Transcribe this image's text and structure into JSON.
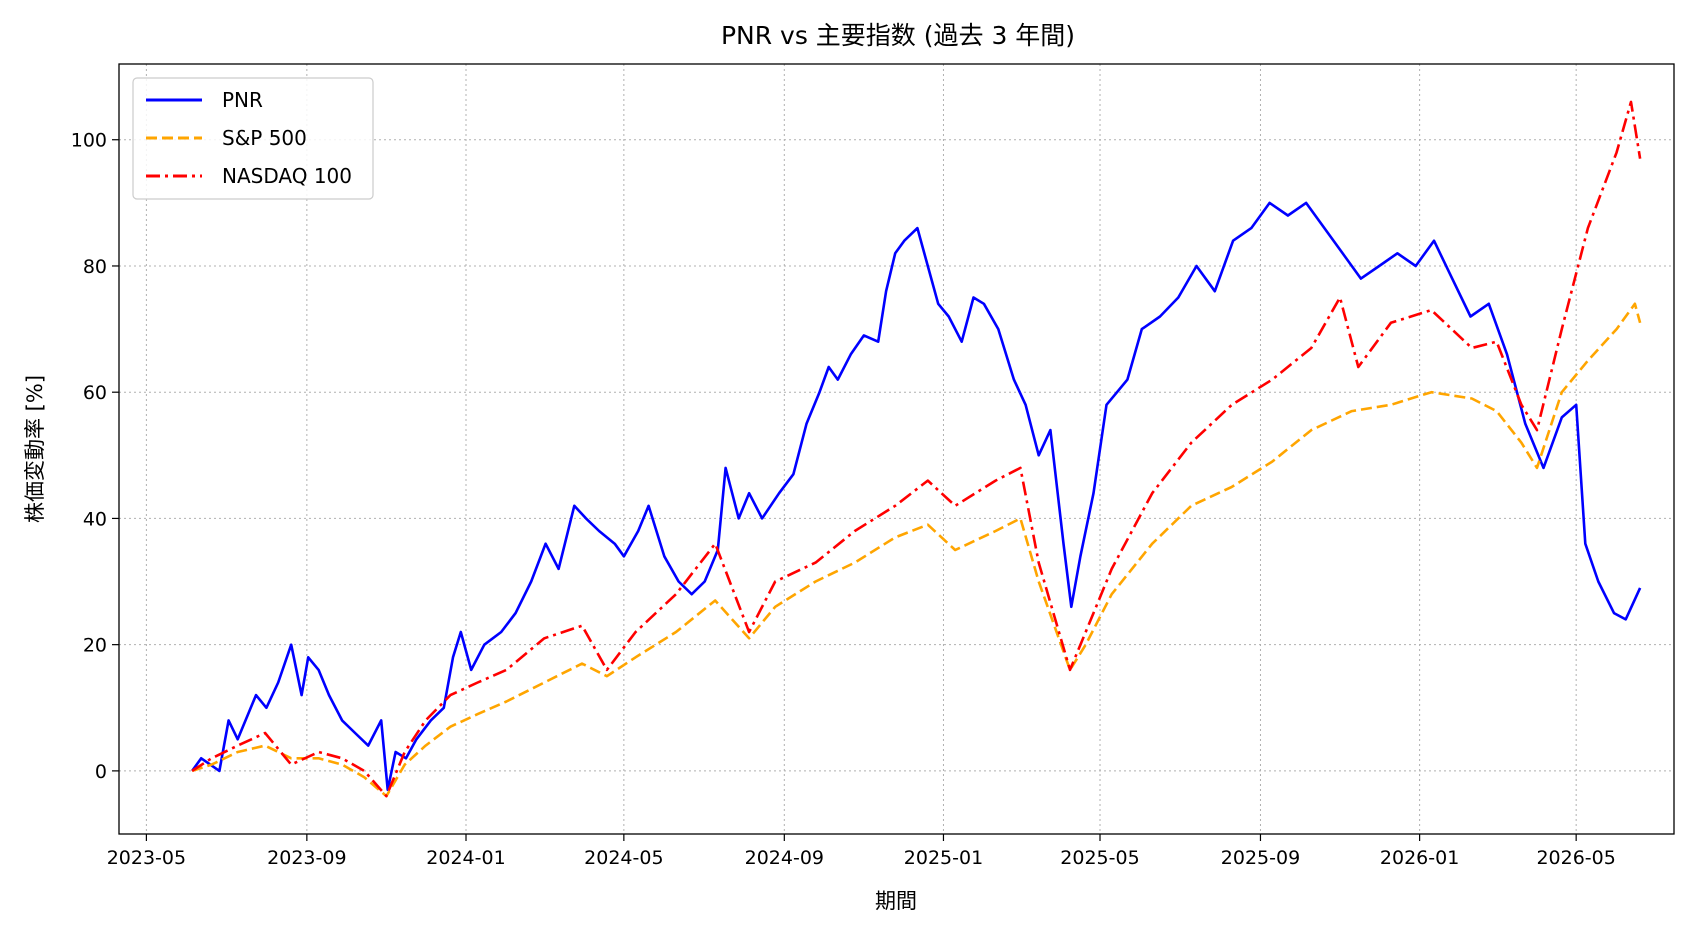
{
  "chart_data": {
    "type": "line",
    "title": "PNR vs 主要指数 (過去 3 年間)",
    "xlabel": "期間",
    "ylabel": "株価変動率 [%]",
    "x_ticks": [
      "2023-05",
      "2023-09",
      "2024-01",
      "2024-05",
      "2024-09",
      "2025-01",
      "2025-05",
      "2025-09",
      "2026-01",
      "2026-05"
    ],
    "y_ticks": [
      0,
      20,
      40,
      60,
      80,
      100
    ],
    "xlim": [
      "2023-04-10",
      "2026-07-15"
    ],
    "ylim": [
      -10,
      112
    ],
    "grid": true,
    "legend_position": "top-left",
    "series": [
      {
        "name": "PNR",
        "color": "#0000ff",
        "style": "solid",
        "points": [
          [
            "2023-06-05",
            0
          ],
          [
            "2023-06-12",
            2
          ],
          [
            "2023-06-26",
            0
          ],
          [
            "2023-07-03",
            8
          ],
          [
            "2023-07-10",
            5
          ],
          [
            "2023-07-24",
            12
          ],
          [
            "2023-08-01",
            10
          ],
          [
            "2023-08-10",
            14
          ],
          [
            "2023-08-20",
            20
          ],
          [
            "2023-08-28",
            12
          ],
          [
            "2023-09-02",
            18
          ],
          [
            "2023-09-10",
            16
          ],
          [
            "2023-09-18",
            12
          ],
          [
            "2023-09-28",
            8
          ],
          [
            "2023-10-08",
            6
          ],
          [
            "2023-10-18",
            4
          ],
          [
            "2023-10-28",
            8
          ],
          [
            "2023-11-02",
            -3
          ],
          [
            "2023-11-08",
            3
          ],
          [
            "2023-11-16",
            2
          ],
          [
            "2023-11-24",
            5
          ],
          [
            "2023-12-05",
            8
          ],
          [
            "2023-12-15",
            10
          ],
          [
            "2023-12-22",
            18
          ],
          [
            "2023-12-28",
            22
          ],
          [
            "2024-01-05",
            16
          ],
          [
            "2024-01-15",
            20
          ],
          [
            "2024-01-28",
            22
          ],
          [
            "2024-02-08",
            25
          ],
          [
            "2024-02-20",
            30
          ],
          [
            "2024-03-02",
            36
          ],
          [
            "2024-03-12",
            32
          ],
          [
            "2024-03-24",
            42
          ],
          [
            "2024-04-02",
            40
          ],
          [
            "2024-04-12",
            38
          ],
          [
            "2024-04-24",
            36
          ],
          [
            "2024-05-01",
            34
          ],
          [
            "2024-05-12",
            38
          ],
          [
            "2024-05-20",
            42
          ],
          [
            "2024-06-01",
            34
          ],
          [
            "2024-06-12",
            30
          ],
          [
            "2024-06-22",
            28
          ],
          [
            "2024-07-02",
            30
          ],
          [
            "2024-07-12",
            35
          ],
          [
            "2024-07-18",
            48
          ],
          [
            "2024-07-28",
            40
          ],
          [
            "2024-08-05",
            44
          ],
          [
            "2024-08-15",
            40
          ],
          [
            "2024-08-28",
            44
          ],
          [
            "2024-09-08",
            47
          ],
          [
            "2024-09-18",
            55
          ],
          [
            "2024-09-28",
            60
          ],
          [
            "2024-10-05",
            64
          ],
          [
            "2024-10-12",
            62
          ],
          [
            "2024-10-22",
            66
          ],
          [
            "2024-11-01",
            69
          ],
          [
            "2024-11-12",
            68
          ],
          [
            "2024-11-18",
            76
          ],
          [
            "2024-11-25",
            82
          ],
          [
            "2024-12-02",
            84
          ],
          [
            "2024-12-12",
            86
          ],
          [
            "2024-12-20",
            80
          ],
          [
            "2024-12-28",
            74
          ],
          [
            "2025-01-05",
            72
          ],
          [
            "2025-01-15",
            68
          ],
          [
            "2025-01-24",
            75
          ],
          [
            "2025-02-01",
            74
          ],
          [
            "2025-02-12",
            70
          ],
          [
            "2025-02-24",
            62
          ],
          [
            "2025-03-05",
            58
          ],
          [
            "2025-03-15",
            50
          ],
          [
            "2025-03-24",
            54
          ],
          [
            "2025-04-03",
            36
          ],
          [
            "2025-04-09",
            26
          ],
          [
            "2025-04-16",
            34
          ],
          [
            "2025-04-26",
            44
          ],
          [
            "2025-05-06",
            58
          ],
          [
            "2025-05-14",
            60
          ],
          [
            "2025-05-22",
            62
          ],
          [
            "2025-06-02",
            70
          ],
          [
            "2025-06-16",
            72
          ],
          [
            "2025-06-30",
            75
          ],
          [
            "2025-07-14",
            80
          ],
          [
            "2025-07-28",
            76
          ],
          [
            "2025-08-11",
            84
          ],
          [
            "2025-08-25",
            86
          ],
          [
            "2025-09-08",
            90
          ],
          [
            "2025-09-22",
            88
          ],
          [
            "2025-10-06",
            90
          ],
          [
            "2025-10-20",
            86
          ],
          [
            "2025-11-03",
            82
          ],
          [
            "2025-11-17",
            78
          ],
          [
            "2025-12-01",
            80
          ],
          [
            "2025-12-15",
            82
          ],
          [
            "2025-12-29",
            80
          ],
          [
            "2026-01-12",
            84
          ],
          [
            "2026-01-26",
            78
          ],
          [
            "2026-02-09",
            72
          ],
          [
            "2026-02-23",
            74
          ],
          [
            "2026-03-09",
            66
          ],
          [
            "2026-03-23",
            55
          ],
          [
            "2026-04-06",
            48
          ],
          [
            "2026-04-20",
            56
          ],
          [
            "2026-05-01",
            58
          ],
          [
            "2026-05-08",
            36
          ],
          [
            "2026-05-18",
            30
          ],
          [
            "2026-05-30",
            25
          ],
          [
            "2026-06-08",
            24
          ],
          [
            "2026-06-19",
            29
          ]
        ]
      },
      {
        "name": "S&P 500",
        "color": "#ffa500",
        "style": "dashed",
        "points": [
          [
            "2023-06-05",
            0
          ],
          [
            "2023-06-20",
            1
          ],
          [
            "2023-07-10",
            3
          ],
          [
            "2023-07-31",
            4
          ],
          [
            "2023-08-20",
            2
          ],
          [
            "2023-09-10",
            2
          ],
          [
            "2023-09-28",
            1
          ],
          [
            "2023-10-15",
            -1
          ],
          [
            "2023-11-01",
            -4
          ],
          [
            "2023-11-15",
            1
          ],
          [
            "2023-12-01",
            4
          ],
          [
            "2023-12-20",
            7
          ],
          [
            "2024-01-10",
            9
          ],
          [
            "2024-02-01",
            11
          ],
          [
            "2024-03-01",
            14
          ],
          [
            "2024-03-30",
            17
          ],
          [
            "2024-04-18",
            15
          ],
          [
            "2024-05-10",
            18
          ],
          [
            "2024-06-10",
            22
          ],
          [
            "2024-07-10",
            27
          ],
          [
            "2024-08-05",
            21
          ],
          [
            "2024-08-25",
            26
          ],
          [
            "2024-09-25",
            30
          ],
          [
            "2024-10-25",
            33
          ],
          [
            "2024-11-25",
            37
          ],
          [
            "2024-12-20",
            39
          ],
          [
            "2025-01-10",
            35
          ],
          [
            "2025-02-10",
            38
          ],
          [
            "2025-03-01",
            40
          ],
          [
            "2025-03-15",
            30
          ],
          [
            "2025-04-08",
            16
          ],
          [
            "2025-04-20",
            20
          ],
          [
            "2025-05-10",
            28
          ],
          [
            "2025-06-10",
            36
          ],
          [
            "2025-07-10",
            42
          ],
          [
            "2025-08-10",
            45
          ],
          [
            "2025-09-10",
            49
          ],
          [
            "2025-10-10",
            54
          ],
          [
            "2025-11-10",
            57
          ],
          [
            "2025-12-10",
            58
          ],
          [
            "2026-01-10",
            60
          ],
          [
            "2026-02-10",
            59
          ],
          [
            "2026-03-01",
            57
          ],
          [
            "2026-03-20",
            52
          ],
          [
            "2026-04-01",
            48
          ],
          [
            "2026-04-20",
            60
          ],
          [
            "2026-05-10",
            65
          ],
          [
            "2026-06-01",
            70
          ],
          [
            "2026-06-15",
            74
          ],
          [
            "2026-06-19",
            71
          ]
        ]
      },
      {
        "name": "NASDAQ 100",
        "color": "#ff0000",
        "style": "dashdot",
        "points": [
          [
            "2023-06-05",
            0
          ],
          [
            "2023-06-20",
            2
          ],
          [
            "2023-07-10",
            4
          ],
          [
            "2023-07-31",
            6
          ],
          [
            "2023-08-20",
            1
          ],
          [
            "2023-09-10",
            3
          ],
          [
            "2023-09-28",
            2
          ],
          [
            "2023-10-15",
            0
          ],
          [
            "2023-11-01",
            -4
          ],
          [
            "2023-11-15",
            3
          ],
          [
            "2023-12-01",
            8
          ],
          [
            "2023-12-20",
            12
          ],
          [
            "2024-01-10",
            14
          ],
          [
            "2024-02-01",
            16
          ],
          [
            "2024-03-01",
            21
          ],
          [
            "2024-03-30",
            23
          ],
          [
            "2024-04-18",
            16
          ],
          [
            "2024-05-10",
            22
          ],
          [
            "2024-06-10",
            28
          ],
          [
            "2024-07-10",
            36
          ],
          [
            "2024-08-05",
            22
          ],
          [
            "2024-08-25",
            30
          ],
          [
            "2024-09-25",
            33
          ],
          [
            "2024-10-25",
            38
          ],
          [
            "2024-11-25",
            42
          ],
          [
            "2024-12-20",
            46
          ],
          [
            "2025-01-10",
            42
          ],
          [
            "2025-02-10",
            46
          ],
          [
            "2025-03-01",
            48
          ],
          [
            "2025-03-15",
            33
          ],
          [
            "2025-04-08",
            16
          ],
          [
            "2025-04-20",
            22
          ],
          [
            "2025-05-10",
            32
          ],
          [
            "2025-06-10",
            44
          ],
          [
            "2025-07-10",
            52
          ],
          [
            "2025-08-10",
            58
          ],
          [
            "2025-09-10",
            62
          ],
          [
            "2025-10-10",
            67
          ],
          [
            "2025-11-01",
            75
          ],
          [
            "2025-11-15",
            64
          ],
          [
            "2025-12-10",
            71
          ],
          [
            "2026-01-10",
            73
          ],
          [
            "2026-02-10",
            67
          ],
          [
            "2026-03-01",
            68
          ],
          [
            "2026-03-20",
            58
          ],
          [
            "2026-04-01",
            54
          ],
          [
            "2026-04-20",
            70
          ],
          [
            "2026-05-10",
            86
          ],
          [
            "2026-06-01",
            98
          ],
          [
            "2026-06-12",
            106
          ],
          [
            "2026-06-19",
            97
          ]
        ]
      }
    ]
  }
}
